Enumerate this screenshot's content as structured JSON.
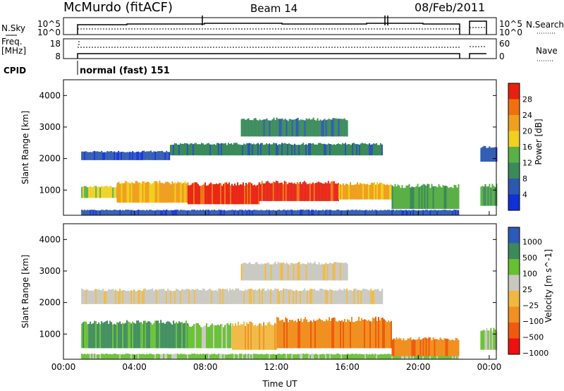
{
  "header": {
    "title": "McMurdo (fitACF)",
    "beam": "Beam 14",
    "date": "08/Feb/2011"
  },
  "status_panels": {
    "nsky_label": "N.Sky",
    "nsearch_label": "N.Search",
    "noise_ticks": [
      "10^5",
      "10^0"
    ],
    "freq_label": "Freq.",
    "freq_unit": "[MHz]",
    "freq_ticks": [
      "18",
      "8"
    ],
    "nave_label": "Nave",
    "nave_ticks": [
      "60",
      "0"
    ],
    "cpid_label": "CPID",
    "cpid_text": "normal (fast) 151"
  },
  "colors": {
    "power": [
      "#1030d8",
      "#2c58b0",
      "#3a8a5a",
      "#5ab046",
      "#f0d020",
      "#f0a020",
      "#f07010",
      "#e82010"
    ],
    "velocity": [
      "#f01010",
      "#f05a10",
      "#f09020",
      "#f0b840",
      "#c8c8c0",
      "#66c030",
      "#3a8a5a",
      "#2c5ab8"
    ]
  },
  "chart_data": [
    {
      "type": "heatmap",
      "panel": "power",
      "xlabel": "",
      "ylabel": "Slant Range [km]",
      "yticks": [
        "1000",
        "2000",
        "3000",
        "4000"
      ],
      "ylim": [
        200,
        4500
      ],
      "colorbar_label": "Power [dB]",
      "colorbar_ticks": [
        "4",
        "8",
        "12",
        "16",
        "20",
        "24",
        "28"
      ],
      "regions": [
        {
          "t_start": 1.0,
          "t_end": 22.3,
          "range_low": 200,
          "range_high": 380,
          "level": 1
        },
        {
          "t_start": 1.0,
          "t_end": 3.0,
          "range_low": 750,
          "range_high": 1150,
          "level": 4
        },
        {
          "t_start": 3.0,
          "t_end": 7.0,
          "range_low": 600,
          "range_high": 1300,
          "level": 5
        },
        {
          "t_start": 7.0,
          "t_end": 11.0,
          "range_low": 550,
          "range_high": 1250,
          "level": 7
        },
        {
          "t_start": 11.0,
          "t_end": 15.5,
          "range_low": 650,
          "range_high": 1300,
          "level": 7
        },
        {
          "t_start": 15.5,
          "t_end": 18.5,
          "range_low": 700,
          "range_high": 1250,
          "level": 5
        },
        {
          "t_start": 18.5,
          "t_end": 22.3,
          "range_low": 400,
          "range_high": 1200,
          "level": 3
        },
        {
          "t_start": 1.0,
          "t_end": 6.0,
          "range_low": 1950,
          "range_high": 2250,
          "level": 1
        },
        {
          "t_start": 6.0,
          "t_end": 18.0,
          "range_low": 2100,
          "range_high": 2500,
          "level": 2
        },
        {
          "t_start": 10.0,
          "t_end": 16.0,
          "range_low": 2700,
          "range_high": 3300,
          "level": 2
        },
        {
          "t_start": 23.5,
          "t_end": 24.4,
          "range_low": 500,
          "range_high": 1200,
          "level": 3
        },
        {
          "t_start": 23.5,
          "t_end": 24.4,
          "range_low": 1900,
          "range_high": 2400,
          "level": 1
        }
      ]
    },
    {
      "type": "heatmap",
      "panel": "velocity",
      "xlabel": "Time UT",
      "ylabel": "Slant Range [km]",
      "xticks": [
        "00:00",
        "04:00",
        "08:00",
        "12:00",
        "16:00",
        "20:00",
        "00:00"
      ],
      "yticks": [
        "1000",
        "2000",
        "3000",
        "4000"
      ],
      "ylim": [
        200,
        4500
      ],
      "colorbar_label": "Velocity [m s^-1]",
      "colorbar_ticks": [
        "1000",
        "500",
        "100",
        "25",
        "−25",
        "−100",
        "−500",
        "−1000"
      ],
      "regions": [
        {
          "t_start": 1.0,
          "t_end": 22.3,
          "range_low": 200,
          "range_high": 380,
          "level": 5
        },
        {
          "t_start": 1.0,
          "t_end": 7.0,
          "range_low": 550,
          "range_high": 1450,
          "level": 6
        },
        {
          "t_start": 7.0,
          "t_end": 9.5,
          "range_low": 550,
          "range_high": 1350,
          "level": 5
        },
        {
          "t_start": 9.5,
          "t_end": 12.0,
          "range_low": 500,
          "range_high": 1400,
          "level": 3
        },
        {
          "t_start": 12.0,
          "t_end": 18.5,
          "range_low": 550,
          "range_high": 1550,
          "level": 2
        },
        {
          "t_start": 18.5,
          "t_end": 22.3,
          "range_low": 300,
          "range_high": 900,
          "level": 2
        },
        {
          "t_start": 1.0,
          "t_end": 18.0,
          "range_low": 1950,
          "range_high": 2450,
          "level": 4
        },
        {
          "t_start": 10.0,
          "t_end": 16.0,
          "range_low": 2700,
          "range_high": 3300,
          "level": 4
        },
        {
          "t_start": 23.5,
          "t_end": 24.4,
          "range_low": 500,
          "range_high": 1200,
          "level": 5
        }
      ]
    }
  ]
}
